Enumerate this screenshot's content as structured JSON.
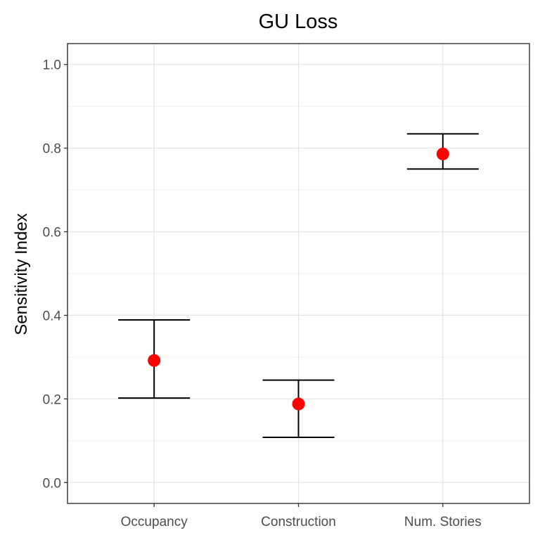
{
  "chart_data": {
    "type": "scatter",
    "title": "GU Loss",
    "xlabel": "",
    "ylabel": "Sensitivity Index",
    "categories": [
      "Occupancy",
      "Construction",
      "Num. Stories"
    ],
    "series": [
      {
        "values": [
          0.292,
          0.188,
          0.786
        ],
        "lower": [
          0.202,
          0.108,
          0.75
        ],
        "upper": [
          0.389,
          0.245,
          0.834
        ],
        "color": "#ff0000",
        "error_bar_color": "#000000"
      }
    ],
    "ylim": [
      -0.05,
      1.05
    ],
    "yticks": [
      {
        "value": 0.0,
        "label": "0.0"
      },
      {
        "value": 0.2,
        "label": "0.2"
      },
      {
        "value": 0.4,
        "label": "0.4"
      },
      {
        "value": 0.6,
        "label": "0.6"
      },
      {
        "value": 0.8,
        "label": "0.8"
      },
      {
        "value": 1.0,
        "label": "1.0"
      }
    ],
    "yminor": [
      0.1,
      0.3,
      0.5,
      0.7,
      0.9
    ],
    "grid": true,
    "legend": "none"
  }
}
